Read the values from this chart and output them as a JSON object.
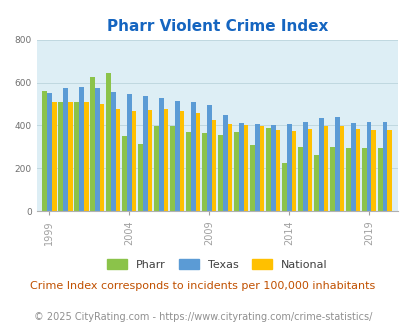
{
  "title": "Pharr Violent Crime Index",
  "subtitle": "Crime Index corresponds to incidents per 100,000 inhabitants",
  "footer": "© 2025 CityRating.com - https://www.cityrating.com/crime-statistics/",
  "years": [
    1999,
    2000,
    2001,
    2002,
    2003,
    2004,
    2005,
    2006,
    2007,
    2008,
    2009,
    2010,
    2011,
    2012,
    2013,
    2014,
    2015,
    2016,
    2017,
    2018,
    2019,
    2020
  ],
  "pharr": [
    560,
    510,
    510,
    625,
    645,
    350,
    315,
    395,
    395,
    370,
    365,
    355,
    370,
    310,
    390,
    225,
    300,
    260,
    300,
    295,
    295,
    295
  ],
  "texas": [
    550,
    575,
    580,
    575,
    555,
    545,
    535,
    530,
    515,
    510,
    495,
    450,
    410,
    405,
    400,
    405,
    415,
    435,
    440,
    410,
    415,
    415
  ],
  "national": [
    510,
    510,
    510,
    500,
    475,
    465,
    470,
    475,
    465,
    460,
    425,
    405,
    400,
    395,
    380,
    375,
    385,
    395,
    395,
    385,
    380,
    380
  ],
  "bar_colors": [
    "#8bc34a",
    "#5b9bd5",
    "#ffc000"
  ],
  "bg_color": "#ddeef5",
  "ylim": [
    0,
    800
  ],
  "yticks": [
    0,
    200,
    400,
    600,
    800
  ],
  "xtick_years": [
    1999,
    2004,
    2009,
    2014,
    2019
  ],
  "title_color": "#1565c0",
  "subtitle_color": "#c05000",
  "footer_color": "#909090",
  "grid_color": "#c0d8e0",
  "title_fontsize": 11,
  "subtitle_fontsize": 8,
  "footer_fontsize": 7,
  "legend_labels": [
    "Pharr",
    "Texas",
    "National"
  ],
  "legend_fontsize": 8
}
